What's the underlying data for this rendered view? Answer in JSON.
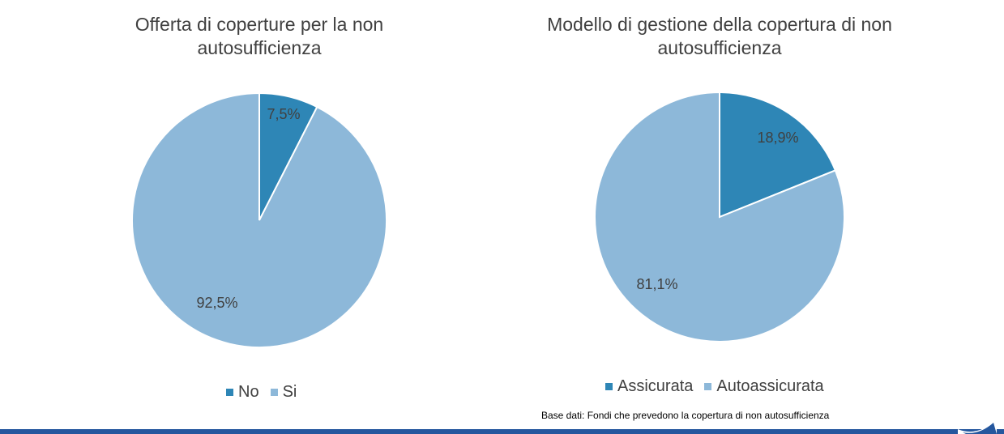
{
  "chart_data": [
    {
      "type": "pie",
      "title": "Offerta di coperture per la non autosufficienza",
      "categories": [
        "No",
        "Si"
      ],
      "values": [
        7.5,
        92.5
      ],
      "data_labels": [
        "7,5%",
        "92,5%"
      ],
      "colors": [
        "#2e86b6",
        "#8db8d9"
      ],
      "legend": {
        "placement": "bottom",
        "entries": [
          "No",
          "Si"
        ]
      }
    },
    {
      "type": "pie",
      "title": "Modello di gestione della copertura di non autosufficienza",
      "categories": [
        "Assicurata",
        "Autoassicurata"
      ],
      "values": [
        18.9,
        81.1
      ],
      "data_labels": [
        "18,9%",
        "81,1%"
      ],
      "colors": [
        "#2e86b6",
        "#8db8d9"
      ],
      "legend": {
        "placement": "bottom",
        "entries": [
          "Assicurata",
          "Autoassicurata"
        ]
      }
    }
  ],
  "footnote": "Base dati: Fondi che prevedono la copertura di non autosufficienza",
  "colors": {
    "band": "#25579e",
    "text": "#404040"
  }
}
